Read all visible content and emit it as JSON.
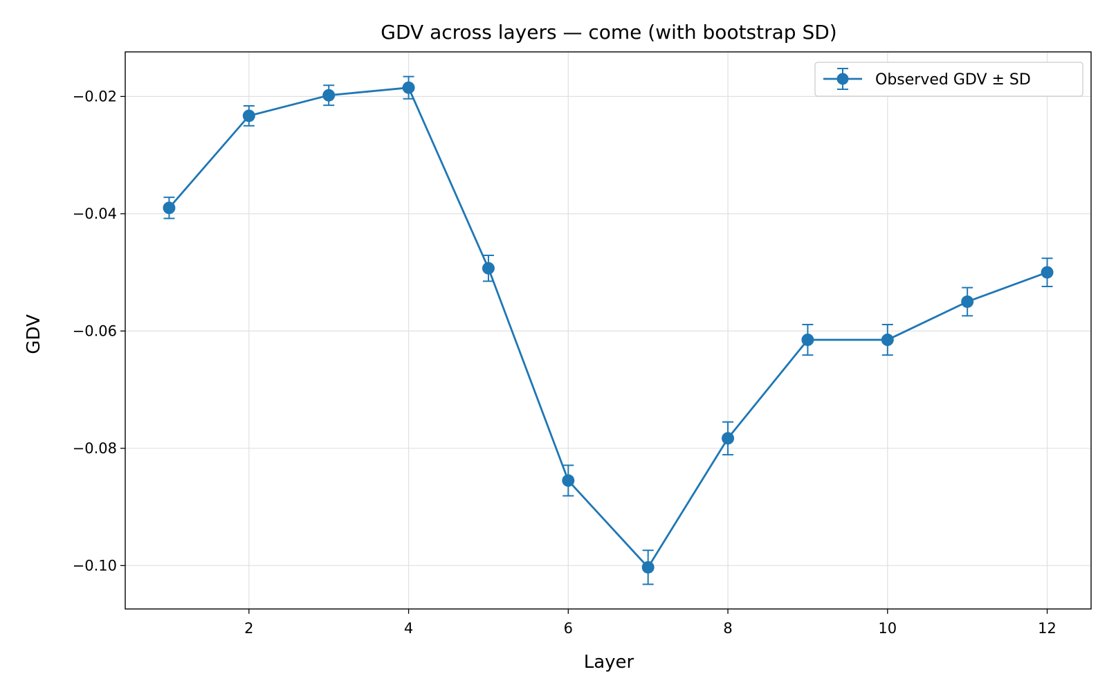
{
  "chart_data": {
    "type": "line",
    "title": "GDV across layers — come (with bootstrap SD)",
    "xlabel": "Layer",
    "ylabel": "GDV",
    "xlim": [
      0.45,
      12.55
    ],
    "ylim": [
      -0.1074,
      -0.0124
    ],
    "xticks": [
      2,
      4,
      6,
      8,
      10,
      12
    ],
    "xtick_labels": [
      "2",
      "4",
      "6",
      "8",
      "10",
      "12"
    ],
    "yticks": [
      -0.02,
      -0.04,
      -0.06,
      -0.08,
      -0.1
    ],
    "ytick_labels": [
      "−0.02",
      "−0.04",
      "−0.06",
      "−0.08",
      "−0.10"
    ],
    "grid": true,
    "legend_position": "top-right",
    "color": "#1f77b4",
    "series": [
      {
        "name": "Observed GDV ± SD",
        "x": [
          1,
          2,
          3,
          4,
          5,
          6,
          7,
          8,
          9,
          10,
          11,
          12
        ],
        "y": [
          -0.039,
          -0.0233,
          -0.0198,
          -0.0185,
          -0.0493,
          -0.0855,
          -0.1003,
          -0.0783,
          -0.0615,
          -0.0615,
          -0.055,
          -0.05
        ],
        "sd": [
          0.0018,
          0.0017,
          0.0017,
          0.0019,
          0.0022,
          0.0026,
          0.0029,
          0.0028,
          0.0026,
          0.0026,
          0.0024,
          0.0024
        ]
      }
    ]
  }
}
